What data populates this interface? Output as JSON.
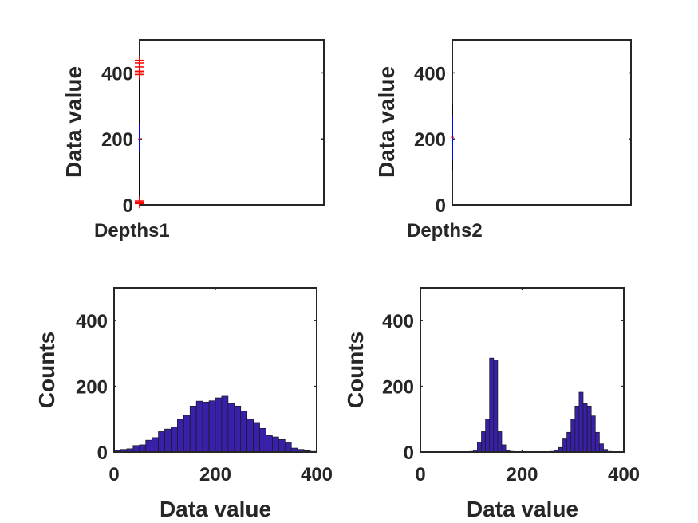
{
  "chart_data": [
    {
      "type": "box",
      "category": "Depths1",
      "ylabel": "Data value",
      "ylim": [
        0,
        500
      ],
      "yticks": [
        0,
        200,
        400
      ],
      "box": {
        "q1": 165,
        "median": 200,
        "q3": 245,
        "whisker_low": 25,
        "whisker_high": 385
      },
      "outliers": [
        4,
        8,
        12,
        395,
        400,
        405,
        418,
        430,
        438
      ],
      "colors": {
        "box": "#0000ff",
        "outlier": "#ff0000",
        "whisker": "#000000"
      }
    },
    {
      "type": "box",
      "category": "Depths2",
      "ylabel": "Data value",
      "ylim": [
        0,
        500
      ],
      "yticks": [
        0,
        200,
        400
      ],
      "box": {
        "q1": 135,
        "median": 205,
        "q3": 270,
        "whisker_low": 105,
        "whisker_high": 305
      },
      "outliers": [],
      "colors": {
        "box": "#0000ff",
        "outlier": "#ff0000",
        "whisker": "#000000"
      }
    },
    {
      "type": "histogram",
      "xlabel": "Data value",
      "ylabel": "Counts",
      "xlim": [
        0,
        400
      ],
      "ylim": [
        0,
        500
      ],
      "xticks": [
        0,
        200,
        400
      ],
      "yticks": [
        0,
        200,
        400
      ],
      "bin_width": 12.5,
      "bin_start": 0,
      "counts": [
        5,
        8,
        10,
        20,
        22,
        36,
        44,
        62,
        70,
        76,
        100,
        112,
        140,
        155,
        152,
        156,
        165,
        170,
        148,
        140,
        125,
        100,
        90,
        72,
        50,
        46,
        38,
        28,
        12,
        8,
        4,
        2
      ],
      "colors": {
        "bar": "#3a1fa8",
        "edge": "#1a1a1a"
      }
    },
    {
      "type": "histogram",
      "xlabel": "Data value",
      "ylabel": "Counts",
      "xlim": [
        0,
        400
      ],
      "ylim": [
        0,
        500
      ],
      "xticks": [
        0,
        200,
        400
      ],
      "yticks": [
        0,
        200,
        400
      ],
      "bin_width": 8,
      "bin_start": 0,
      "counts": [
        0,
        0,
        0,
        0,
        0,
        0,
        0,
        0,
        0,
        0,
        0,
        0,
        2,
        6,
        30,
        62,
        100,
        286,
        280,
        62,
        22,
        5,
        2,
        0,
        0,
        0,
        0,
        0,
        0,
        0,
        0,
        0,
        2,
        6,
        14,
        40,
        60,
        100,
        140,
        182,
        148,
        140,
        110,
        60,
        25,
        8,
        2,
        0,
        0,
        0
      ],
      "colors": {
        "bar": "#3a1fa8",
        "edge": "#1a1a1a"
      }
    }
  ]
}
